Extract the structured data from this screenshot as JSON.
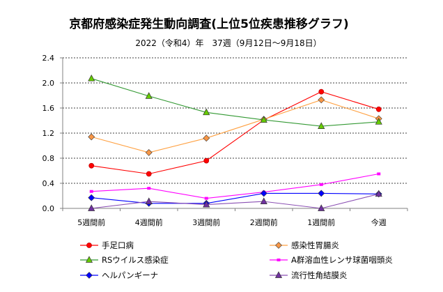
{
  "chart_data": {
    "type": "line",
    "title": "京都府感染症発生動向調査(上位5位疾患推移グラフ)",
    "subtitle": "2022（令和4）年　37週（9月12日～9月18日）",
    "categories": [
      "5週間前",
      "4週間前",
      "3週間前",
      "2週間前",
      "1週間前",
      "今週"
    ],
    "ylim": [
      0,
      2.4
    ],
    "yticks": [
      "0.0",
      "0.4",
      "0.8",
      "1.2",
      "1.6",
      "2.0",
      "2.4"
    ],
    "grid": true,
    "legend_position": "bottom",
    "series": [
      {
        "name": "手足口病",
        "values": [
          0.68,
          0.55,
          0.76,
          1.41,
          1.86,
          1.58
        ],
        "color": "#ff0000",
        "line": "#ff0000",
        "marker": "circle"
      },
      {
        "name": "感染性胃腸炎",
        "values": [
          1.14,
          0.89,
          1.12,
          1.42,
          1.73,
          1.43
        ],
        "color": "#f79646",
        "line": "#ffa040",
        "marker": "diamond"
      },
      {
        "name": "RSウイルス感染症",
        "values": [
          2.07,
          1.79,
          1.53,
          1.41,
          1.31,
          1.38
        ],
        "color": "#66cc00",
        "line": "#339933",
        "marker": "triangle"
      },
      {
        "name": "A群溶血性レンサ球菌咽頭炎",
        "values": [
          0.27,
          0.32,
          0.16,
          0.26,
          0.38,
          0.55
        ],
        "color": "#ff00ff",
        "line": "#ff00ff",
        "marker": "square"
      },
      {
        "name": "ヘルパンギーナ",
        "values": [
          0.17,
          0.08,
          0.08,
          0.24,
          0.24,
          0.23
        ],
        "color": "#0000ff",
        "line": "#0000ff",
        "marker": "diamond"
      },
      {
        "name": "流行性角結膜炎",
        "values": [
          0.0,
          0.11,
          0.06,
          0.11,
          0.0,
          0.23
        ],
        "color": "#7030a0",
        "line": "#8a4fb3",
        "marker": "triangle"
      }
    ]
  }
}
